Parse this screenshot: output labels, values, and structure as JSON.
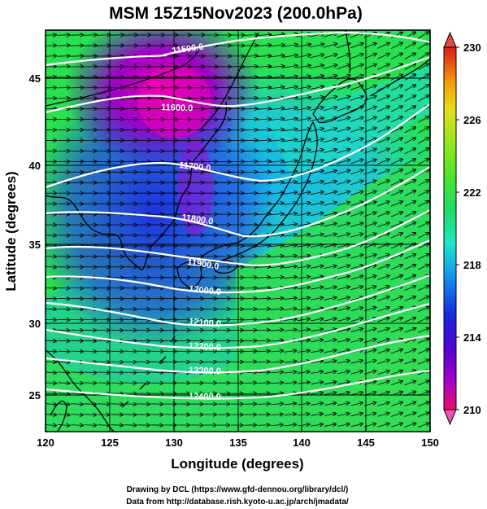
{
  "title": "MSM 15Z15Nov2023 (200.0hPa)",
  "xlabel": "Longitude (degrees)",
  "ylabel": "Latitude  (degrees)",
  "credits": {
    "line1": "Drawing by DCL (https://www.gfd-dennou.org/library/dcl/)",
    "line2": "Data from http://database.rish.kyoto-u.ac.jp/arch/jmadata/"
  },
  "map": {
    "lon_range": [
      120,
      150
    ],
    "lat_range": [
      22.5,
      47.5
    ],
    "x_ticks": [
      "120",
      "125",
      "130",
      "135",
      "140",
      "145",
      "150"
    ],
    "y_ticks": [
      "25",
      "30",
      "35",
      "40",
      "45"
    ],
    "grid": true
  },
  "colorbar": {
    "min": 210,
    "max": 230,
    "tick_labels": [
      "230",
      "226",
      "222",
      "218",
      "214",
      "210"
    ],
    "colors": [
      "#e8106e",
      "#a500c8",
      "#5a00d2",
      "#1428dc",
      "#14a0f0",
      "#1ee6c8",
      "#1edc64",
      "#50e628",
      "#a0e61e",
      "#e6dc14",
      "#f5a00a",
      "#e65014",
      "#dc1e1e"
    ],
    "extend_arrows": true
  },
  "contours": {
    "variable": "geopotential height",
    "levels": [
      "11500.0",
      "11600.0",
      "11700.0",
      "11800.0",
      "11900.0",
      "12000.0",
      "12100.0",
      "12200.0",
      "12300.0",
      "12400.0"
    ],
    "color": "#ffffff"
  },
  "wind_vectors": {
    "color": "#000000",
    "direction": "westerly, turning north-east to the east of Japan"
  }
}
